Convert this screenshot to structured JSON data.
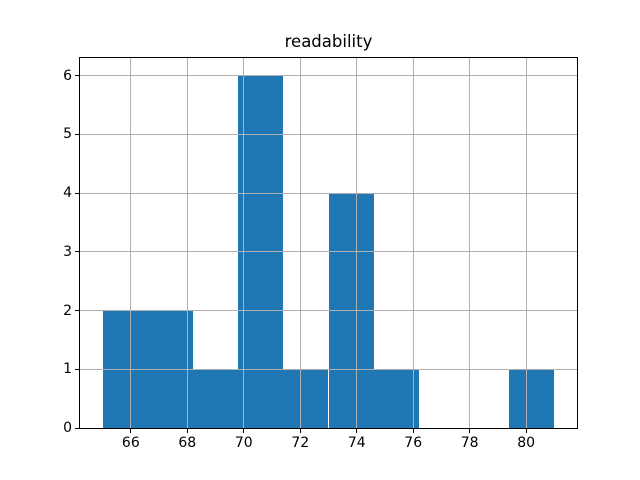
{
  "chart_data": {
    "type": "bar",
    "subtype": "histogram",
    "title": "readability",
    "bin_edges": [
      65.0,
      66.6,
      68.2,
      69.8,
      71.4,
      73.0,
      74.6,
      76.2,
      77.8,
      79.4,
      81.0
    ],
    "counts": [
      2,
      2,
      1,
      6,
      1,
      4,
      1,
      0,
      0,
      1
    ],
    "xticks": [
      66,
      68,
      70,
      72,
      74,
      76,
      78,
      80
    ],
    "yticks": [
      0,
      1,
      2,
      3,
      4,
      5,
      6
    ],
    "xlim": [
      64.2,
      81.8
    ],
    "ylim": [
      0,
      6.3
    ],
    "xlabel": "",
    "ylabel": "",
    "grid": true,
    "legend": "none",
    "bar_color": "#1f77b4",
    "grid_color": "#b0b0b0",
    "spine_color": "#000000"
  }
}
